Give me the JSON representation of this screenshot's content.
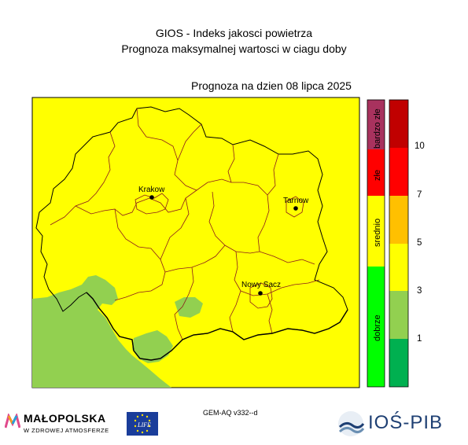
{
  "header": {
    "title": "GIOS - Indeks jakosci powietrza",
    "subtitle": "Prognoza maksymalnej wartosci w ciagu doby",
    "forecast_date": "Prognoza na dzien  08 lipca 2025"
  },
  "map": {
    "fill_color_forecast": "#ffff00",
    "fill_color_good": "#92d050",
    "cities": [
      {
        "name": "Krakow"
      },
      {
        "name": "Tarnow"
      },
      {
        "name": "Nowy Sacz"
      }
    ]
  },
  "category_bar": {
    "segments": [
      {
        "label": "bardzo złe",
        "color": "#a8325e"
      },
      {
        "label": "złe",
        "color": "#ff0000"
      },
      {
        "label": "srednio",
        "color": "#ffff00"
      },
      {
        "label": "dobrze",
        "color": "#00ff00"
      }
    ]
  },
  "index_scale": {
    "colors": [
      "#c00000",
      "#ff0000",
      "#ffc000",
      "#ffff00",
      "#92d050",
      "#00b050"
    ],
    "tick_labels": [
      "10",
      "7",
      "5",
      "3",
      "1"
    ]
  },
  "footer": {
    "model_version": "GEM-AQ v332--d",
    "malopolska_name": "MAŁOPOLSKA",
    "malopolska_tagline": "W ZDROWEJ ATMOSFERZE",
    "life_logo_text": "LIFE",
    "ios_name": "IOŚ-PIB"
  }
}
